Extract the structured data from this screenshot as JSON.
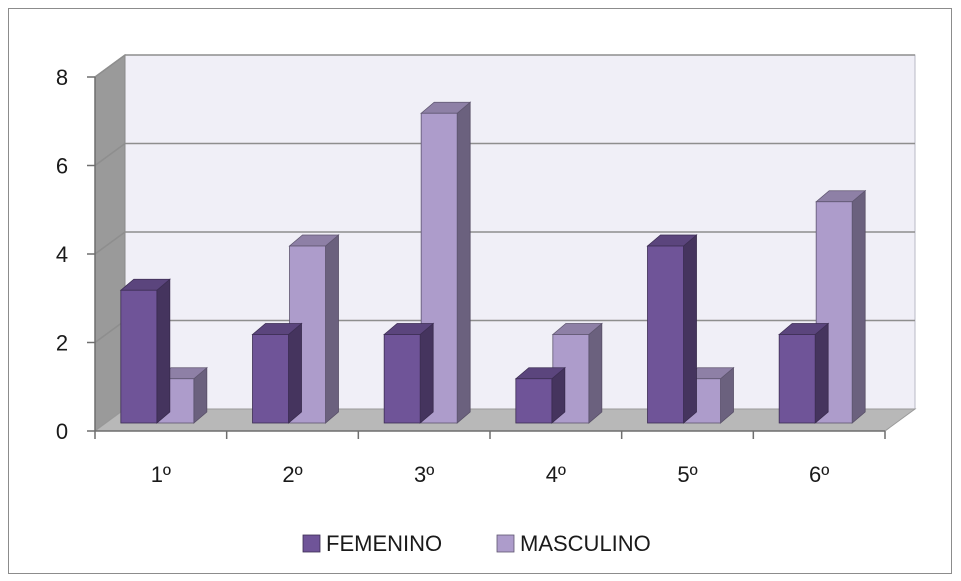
{
  "chart_data": {
    "type": "bar",
    "style": "3d-clustered-column",
    "categories": [
      "1º",
      "2º",
      "3º",
      "4º",
      "5º",
      "6º"
    ],
    "series": [
      {
        "name": "FEMENINO",
        "values": [
          3,
          2,
          2,
          1,
          4,
          2
        ],
        "color": "#6f5498"
      },
      {
        "name": "MASCULINO",
        "values": [
          1,
          4,
          7,
          2,
          1,
          5
        ],
        "color": "#ad9ccb"
      }
    ],
    "y_ticks": [
      "0",
      "2",
      "4",
      "6",
      "8"
    ],
    "ylim": [
      0,
      8
    ],
    "grid": true,
    "legend_position": "bottom"
  },
  "colors": {
    "back_wall": "#f0eff7",
    "side_wall": "#9a9a9a",
    "floor": "#b8b8b8",
    "gridline": "#8e8e8e",
    "axis": "#6e6e6e"
  }
}
